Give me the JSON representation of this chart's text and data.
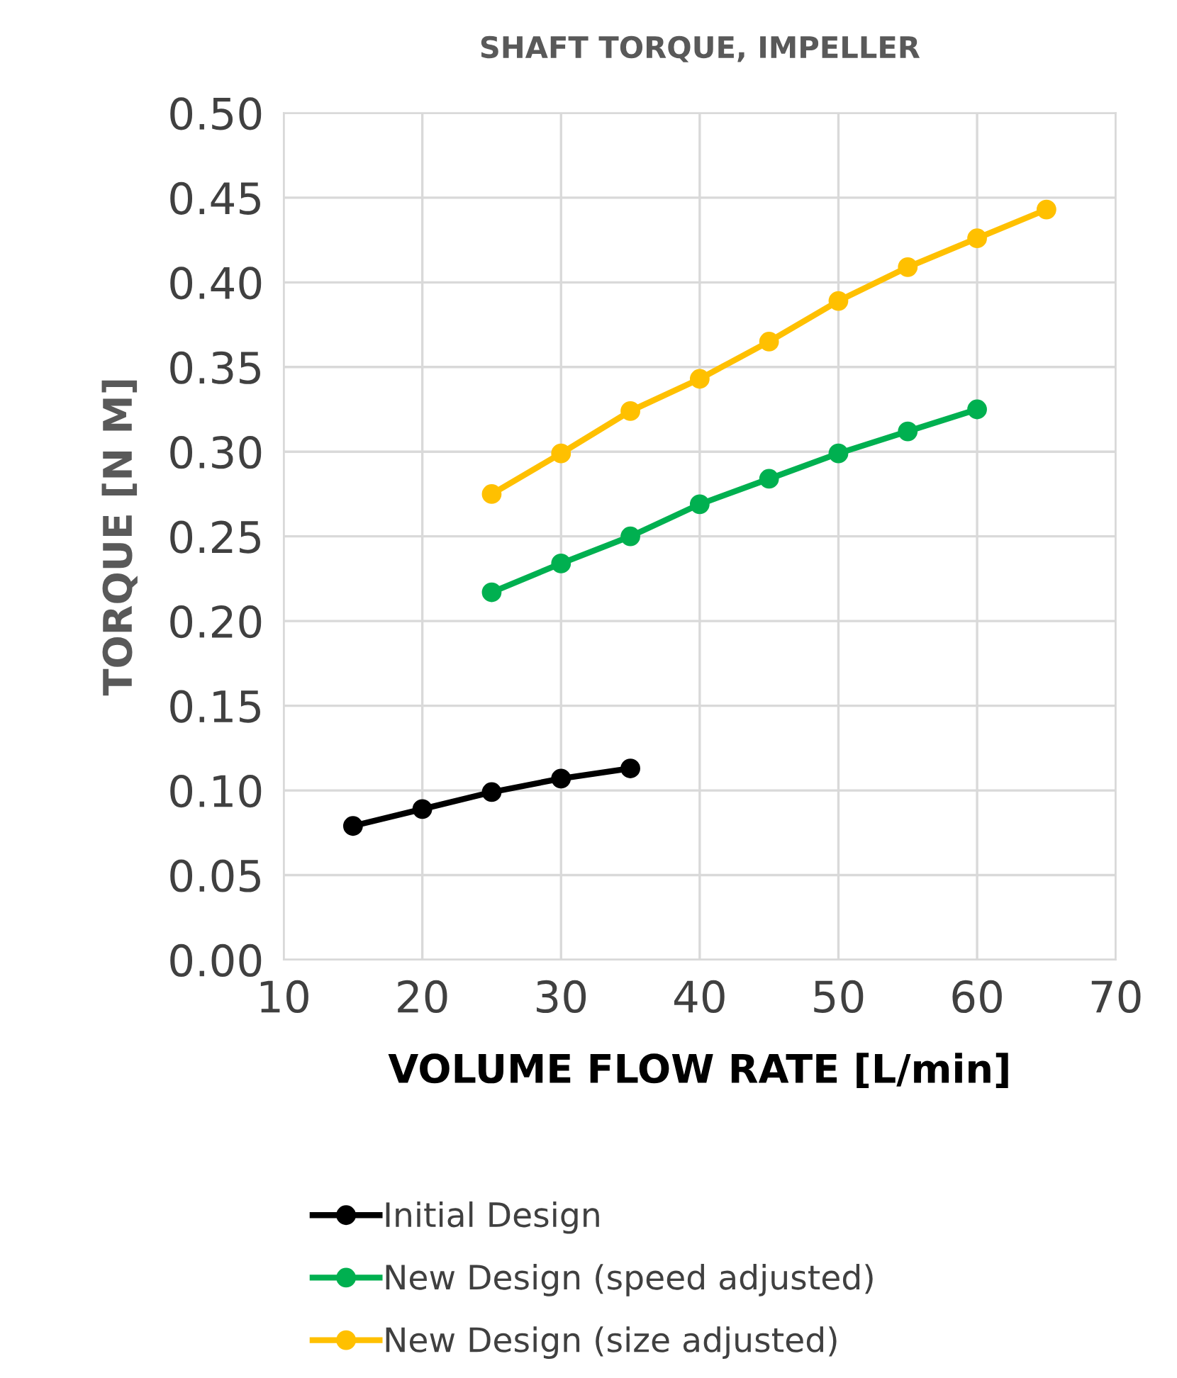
{
  "chart_data": {
    "type": "line",
    "title": "SHAFT TORQUE, IMPELLER",
    "xlabel": "VOLUME FLOW RATE [L/min]",
    "ylabel": "TORQUE [N M]",
    "xlim": [
      10,
      70
    ],
    "xticks": [
      10,
      20,
      30,
      40,
      50,
      60,
      70
    ],
    "ylim": [
      0,
      0.5
    ],
    "yticks": [
      {
        "value": 0,
        "label": "0.00"
      },
      {
        "value": 0.05,
        "label": "0.05"
      },
      {
        "value": 0.1,
        "label": "0.10"
      },
      {
        "value": 0.15,
        "label": "0.15"
      },
      {
        "value": 0.2,
        "label": "0.20"
      },
      {
        "value": 0.25,
        "label": "0.25"
      },
      {
        "value": 0.3,
        "label": "0.30"
      },
      {
        "value": 0.35,
        "label": "0.35"
      },
      {
        "value": 0.4,
        "label": "0.40"
      },
      {
        "value": 0.45,
        "label": "0.45"
      },
      {
        "value": 0.5,
        "label": "0.50"
      }
    ],
    "grid": true,
    "legend": "bottom",
    "marker": "circle",
    "line_style": "solid",
    "series": [
      {
        "name": "Initial Design",
        "color": "#000000",
        "x": [
          15,
          20,
          25,
          30,
          35
        ],
        "values": [
          0.079,
          0.089,
          0.099,
          0.107,
          0.113
        ]
      },
      {
        "name": "New Design (speed adjusted)",
        "color": "#00b050",
        "x": [
          25,
          30,
          35,
          40,
          45,
          50,
          55,
          60
        ],
        "values": [
          0.217,
          0.234,
          0.25,
          0.269,
          0.284,
          0.299,
          0.312,
          0.325
        ]
      },
      {
        "name": "New Design (size adjusted)",
        "color": "#ffc000",
        "x": [
          25,
          30,
          35,
          40,
          45,
          50,
          55,
          60,
          65
        ],
        "values": [
          0.275,
          0.299,
          0.324,
          0.343,
          0.365,
          0.389,
          0.409,
          0.426,
          0.443
        ]
      }
    ]
  }
}
